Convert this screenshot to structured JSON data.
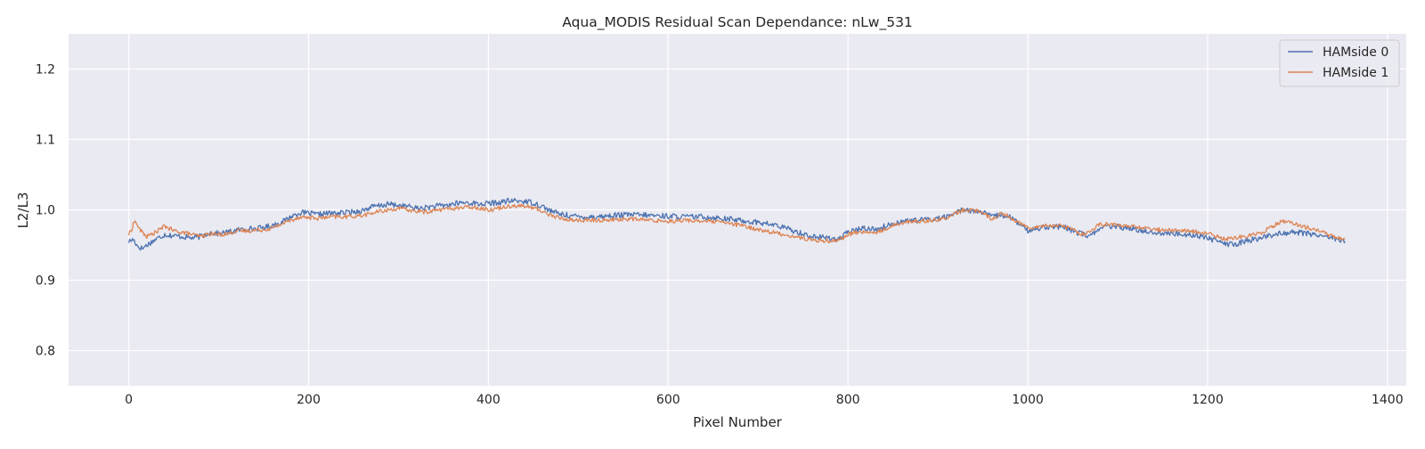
{
  "chart_data": {
    "type": "line",
    "title": "Aqua_MODIS Residual Scan Dependance: nLw_531",
    "xlabel": "Pixel Number",
    "ylabel": "L2/L3",
    "xlim": [
      -67,
      1421
    ],
    "ylim": [
      0.75,
      1.25
    ],
    "x_ticks": [
      0,
      200,
      400,
      600,
      800,
      1000,
      1200,
      1400
    ],
    "y_ticks": [
      0.8,
      0.9,
      1.0,
      1.1,
      1.2
    ],
    "x_tick_labels": [
      "0",
      "200",
      "400",
      "600",
      "800",
      "1000",
      "1200",
      "1400"
    ],
    "y_tick_labels": [
      "0.8",
      "0.9",
      "1.0",
      "1.1",
      "1.2"
    ],
    "grid": true,
    "legend_position": "top-right",
    "x_range": [
      0,
      1353
    ],
    "series": [
      {
        "name": "HAMside 0",
        "color": "#4c72b0",
        "noise": 0.004,
        "points": [
          [
            0,
            0.955
          ],
          [
            5,
            0.958
          ],
          [
            10,
            0.948
          ],
          [
            15,
            0.945
          ],
          [
            20,
            0.95
          ],
          [
            30,
            0.958
          ],
          [
            40,
            0.965
          ],
          [
            50,
            0.963
          ],
          [
            60,
            0.962
          ],
          [
            70,
            0.96
          ],
          [
            80,
            0.962
          ],
          [
            90,
            0.968
          ],
          [
            100,
            0.966
          ],
          [
            110,
            0.968
          ],
          [
            120,
            0.971
          ],
          [
            130,
            0.973
          ],
          [
            140,
            0.973
          ],
          [
            150,
            0.975
          ],
          [
            160,
            0.978
          ],
          [
            170,
            0.982
          ],
          [
            180,
            0.99
          ],
          [
            190,
            0.996
          ],
          [
            200,
            0.995
          ],
          [
            210,
            0.993
          ],
          [
            220,
            0.995
          ],
          [
            230,
            0.995
          ],
          [
            240,
            0.996
          ],
          [
            250,
            0.997
          ],
          [
            260,
            0.999
          ],
          [
            270,
            1.004
          ],
          [
            280,
            1.006
          ],
          [
            290,
            1.008
          ],
          [
            300,
            1.006
          ],
          [
            310,
            1.005
          ],
          [
            320,
            1.002
          ],
          [
            330,
            1.003
          ],
          [
            340,
            1.005
          ],
          [
            350,
            1.006
          ],
          [
            360,
            1.008
          ],
          [
            370,
            1.01
          ],
          [
            380,
            1.01
          ],
          [
            390,
            1.008
          ],
          [
            400,
            1.009
          ],
          [
            410,
            1.01
          ],
          [
            420,
            1.012
          ],
          [
            430,
            1.013
          ],
          [
            440,
            1.012
          ],
          [
            450,
            1.01
          ],
          [
            460,
            1.005
          ],
          [
            470,
            0.998
          ],
          [
            480,
            0.994
          ],
          [
            490,
            0.992
          ],
          [
            500,
            0.99
          ],
          [
            520,
            0.99
          ],
          [
            540,
            0.992
          ],
          [
            560,
            0.993
          ],
          [
            580,
            0.992
          ],
          [
            600,
            0.991
          ],
          [
            620,
            0.99
          ],
          [
            640,
            0.99
          ],
          [
            660,
            0.988
          ],
          [
            680,
            0.985
          ],
          [
            700,
            0.982
          ],
          [
            720,
            0.978
          ],
          [
            740,
            0.97
          ],
          [
            760,
            0.962
          ],
          [
            780,
            0.96
          ],
          [
            790,
            0.958
          ],
          [
            800,
            0.968
          ],
          [
            810,
            0.972
          ],
          [
            820,
            0.974
          ],
          [
            830,
            0.972
          ],
          [
            840,
            0.976
          ],
          [
            850,
            0.98
          ],
          [
            860,
            0.984
          ],
          [
            880,
            0.985
          ],
          [
            900,
            0.988
          ],
          [
            910,
            0.99
          ],
          [
            920,
            0.996
          ],
          [
            930,
            1.001
          ],
          [
            940,
            0.998
          ],
          [
            950,
            0.996
          ],
          [
            960,
            0.99
          ],
          [
            970,
            0.993
          ],
          [
            980,
            0.99
          ],
          [
            990,
            0.98
          ],
          [
            1000,
            0.97
          ],
          [
            1010,
            0.974
          ],
          [
            1020,
            0.976
          ],
          [
            1040,
            0.975
          ],
          [
            1050,
            0.97
          ],
          [
            1060,
            0.966
          ],
          [
            1070,
            0.962
          ],
          [
            1080,
            0.975
          ],
          [
            1100,
            0.976
          ],
          [
            1120,
            0.972
          ],
          [
            1140,
            0.968
          ],
          [
            1160,
            0.966
          ],
          [
            1180,
            0.965
          ],
          [
            1200,
            0.961
          ],
          [
            1210,
            0.955
          ],
          [
            1220,
            0.952
          ],
          [
            1230,
            0.95
          ],
          [
            1240,
            0.955
          ],
          [
            1260,
            0.96
          ],
          [
            1280,
            0.967
          ],
          [
            1300,
            0.968
          ],
          [
            1320,
            0.965
          ],
          [
            1340,
            0.96
          ],
          [
            1353,
            0.955
          ]
        ]
      },
      {
        "name": "HAMside 1",
        "color": "#dd8452",
        "noise": 0.003,
        "points": [
          [
            0,
            0.965
          ],
          [
            3,
            0.972
          ],
          [
            6,
            0.984
          ],
          [
            9,
            0.98
          ],
          [
            12,
            0.972
          ],
          [
            20,
            0.962
          ],
          [
            30,
            0.968
          ],
          [
            40,
            0.977
          ],
          [
            50,
            0.97
          ],
          [
            60,
            0.968
          ],
          [
            70,
            0.965
          ],
          [
            80,
            0.962
          ],
          [
            90,
            0.966
          ],
          [
            100,
            0.965
          ],
          [
            110,
            0.966
          ],
          [
            120,
            0.97
          ],
          [
            130,
            0.97
          ],
          [
            140,
            0.971
          ],
          [
            150,
            0.972
          ],
          [
            160,
            0.974
          ],
          [
            170,
            0.98
          ],
          [
            180,
            0.985
          ],
          [
            190,
            0.99
          ],
          [
            200,
            0.989
          ],
          [
            210,
            0.988
          ],
          [
            220,
            0.989
          ],
          [
            230,
            0.99
          ],
          [
            240,
            0.99
          ],
          [
            250,
            0.991
          ],
          [
            260,
            0.992
          ],
          [
            270,
            0.995
          ],
          [
            280,
            0.998
          ],
          [
            290,
            1.0
          ],
          [
            300,
            1.002
          ],
          [
            310,
            1.0
          ],
          [
            320,
            0.998
          ],
          [
            330,
            0.997
          ],
          [
            340,
            0.999
          ],
          [
            350,
            1.001
          ],
          [
            360,
            1.002
          ],
          [
            370,
            1.003
          ],
          [
            380,
            1.004
          ],
          [
            390,
            1.003
          ],
          [
            400,
            1.0
          ],
          [
            410,
            1.002
          ],
          [
            420,
            1.005
          ],
          [
            430,
            1.006
          ],
          [
            440,
            1.005
          ],
          [
            450,
            1.003
          ],
          [
            460,
            0.998
          ],
          [
            470,
            0.992
          ],
          [
            480,
            0.988
          ],
          [
            490,
            0.986
          ],
          [
            500,
            0.985
          ],
          [
            520,
            0.985
          ],
          [
            540,
            0.986
          ],
          [
            560,
            0.987
          ],
          [
            580,
            0.985
          ],
          [
            600,
            0.984
          ],
          [
            620,
            0.985
          ],
          [
            640,
            0.984
          ],
          [
            660,
            0.982
          ],
          [
            680,
            0.978
          ],
          [
            700,
            0.972
          ],
          [
            720,
            0.967
          ],
          [
            740,
            0.962
          ],
          [
            760,
            0.957
          ],
          [
            780,
            0.956
          ],
          [
            790,
            0.957
          ],
          [
            800,
            0.965
          ],
          [
            810,
            0.968
          ],
          [
            820,
            0.968
          ],
          [
            830,
            0.967
          ],
          [
            840,
            0.972
          ],
          [
            850,
            0.978
          ],
          [
            860,
            0.982
          ],
          [
            880,
            0.984
          ],
          [
            900,
            0.986
          ],
          [
            910,
            0.988
          ],
          [
            920,
            0.995
          ],
          [
            930,
            1.0
          ],
          [
            940,
            0.999
          ],
          [
            950,
            0.996
          ],
          [
            960,
            0.987
          ],
          [
            970,
            0.995
          ],
          [
            980,
            0.99
          ],
          [
            990,
            0.982
          ],
          [
            1000,
            0.975
          ],
          [
            1010,
            0.976
          ],
          [
            1020,
            0.978
          ],
          [
            1040,
            0.977
          ],
          [
            1050,
            0.972
          ],
          [
            1060,
            0.966
          ],
          [
            1070,
            0.968
          ],
          [
            1080,
            0.98
          ],
          [
            1100,
            0.978
          ],
          [
            1120,
            0.976
          ],
          [
            1140,
            0.972
          ],
          [
            1160,
            0.971
          ],
          [
            1180,
            0.97
          ],
          [
            1200,
            0.966
          ],
          [
            1210,
            0.962
          ],
          [
            1220,
            0.958
          ],
          [
            1230,
            0.96
          ],
          [
            1240,
            0.962
          ],
          [
            1260,
            0.968
          ],
          [
            1280,
            0.982
          ],
          [
            1290,
            0.985
          ],
          [
            1300,
            0.978
          ],
          [
            1320,
            0.972
          ],
          [
            1340,
            0.962
          ],
          [
            1353,
            0.958
          ]
        ]
      }
    ]
  }
}
